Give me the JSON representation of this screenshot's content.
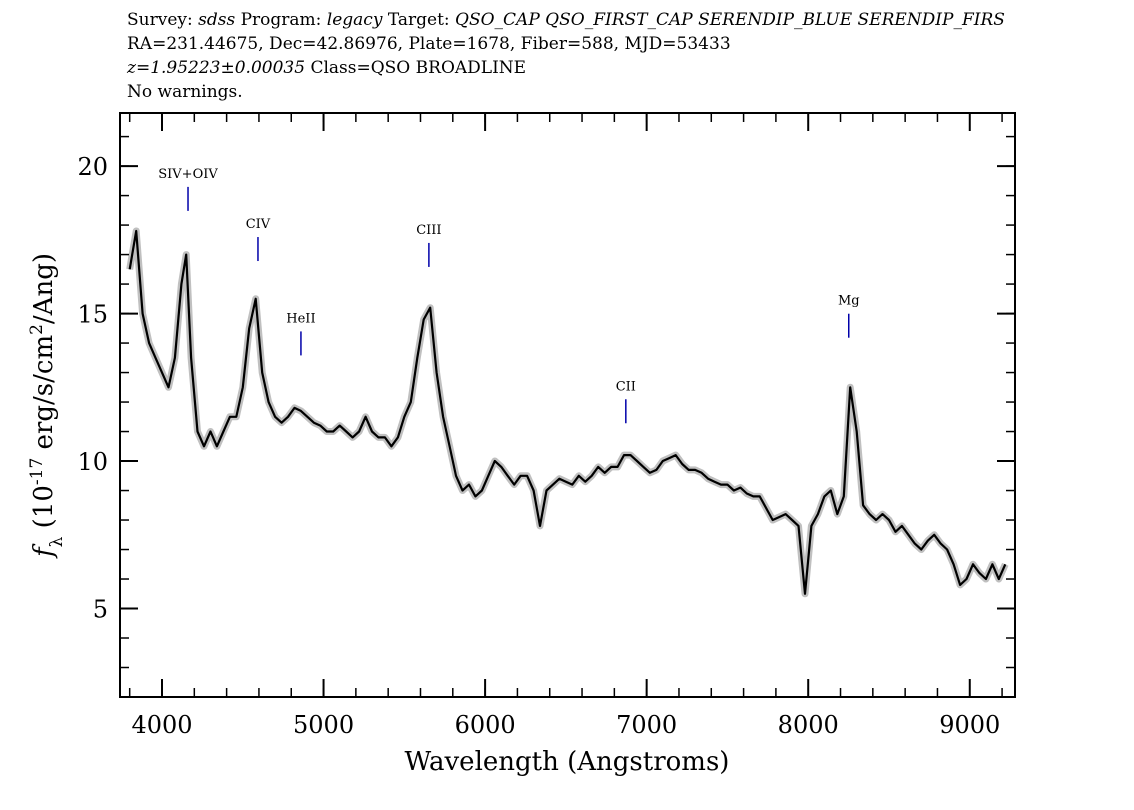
{
  "chart_data": {
    "type": "line",
    "header": [
      [
        {
          "text": "Survey: "
        },
        {
          "text": "sdss",
          "italic": true
        },
        {
          "text": " Program: "
        },
        {
          "text": "legacy",
          "italic": true
        },
        {
          "text": " Target: "
        },
        {
          "text": "QSO_CAP QSO_FIRST_CAP SERENDIP_BLUE SERENDIP_FIRS",
          "italic": true
        }
      ],
      [
        {
          "text": "RA=231.44675, Dec=42.86976, Plate=1678, Fiber=588, MJD=53433"
        }
      ],
      [
        {
          "text": "z=1.95223±0.00035",
          "italic": true
        },
        {
          "text": " Class=QSO BROADLINE"
        }
      ],
      [
        {
          "text": "No warnings."
        }
      ]
    ],
    "xlabel": "Wavelength (Angstroms)",
    "ylabel": [
      {
        "text": "f",
        "italic": true
      },
      {
        "text": "λ",
        "sub": true
      },
      {
        "text": " (10"
      },
      {
        "text": "-17",
        "sup": true
      },
      {
        "text": " erg/s/cm"
      },
      {
        "text": "2",
        "sup": true
      },
      {
        "text": "/Ang)"
      }
    ],
    "xlim": [
      3740,
      9280
    ],
    "ylim": [
      2,
      21.8
    ],
    "xticks": [
      4000,
      5000,
      6000,
      7000,
      8000,
      9000
    ],
    "yticks": [
      5,
      10,
      15,
      20
    ],
    "x": [
      3800,
      3840,
      3880,
      3920,
      3960,
      4000,
      4040,
      4080,
      4120,
      4150,
      4180,
      4220,
      4260,
      4300,
      4340,
      4380,
      4420,
      4460,
      4500,
      4540,
      4580,
      4620,
      4660,
      4700,
      4740,
      4780,
      4820,
      4860,
      4900,
      4940,
      4980,
      5020,
      5060,
      5100,
      5140,
      5180,
      5220,
      5260,
      5300,
      5340,
      5380,
      5420,
      5460,
      5500,
      5540,
      5580,
      5620,
      5660,
      5700,
      5740,
      5780,
      5820,
      5860,
      5900,
      5940,
      5980,
      6020,
      6060,
      6100,
      6140,
      6180,
      6220,
      6260,
      6300,
      6340,
      6380,
      6420,
      6460,
      6500,
      6540,
      6580,
      6620,
      6660,
      6700,
      6740,
      6780,
      6820,
      6860,
      6900,
      6940,
      6980,
      7020,
      7060,
      7100,
      7140,
      7180,
      7220,
      7260,
      7300,
      7340,
      7380,
      7420,
      7460,
      7500,
      7540,
      7580,
      7620,
      7660,
      7700,
      7740,
      7780,
      7820,
      7860,
      7900,
      7940,
      7980,
      8020,
      8060,
      8100,
      8140,
      8180,
      8220,
      8260,
      8300,
      8340,
      8380,
      8420,
      8460,
      8500,
      8540,
      8580,
      8620,
      8660,
      8700,
      8740,
      8780,
      8820,
      8860,
      8900,
      8940,
      8980,
      9020,
      9060,
      9100,
      9140,
      9180,
      9220
    ],
    "series": [
      {
        "color": "#000000",
        "error_color": "#c0c0c0",
        "values": [
          16.5,
          17.8,
          15,
          14,
          13.5,
          13,
          12.5,
          13.5,
          16,
          17,
          13.5,
          11,
          10.5,
          11,
          10.5,
          11,
          11.5,
          11.5,
          12.5,
          14.5,
          15.5,
          13,
          12,
          11.5,
          11.3,
          11.5,
          11.8,
          11.7,
          11.5,
          11.3,
          11.2,
          11,
          11,
          11.2,
          11,
          10.8,
          11,
          11.5,
          11,
          10.8,
          10.8,
          10.5,
          10.8,
          11.5,
          12,
          13.5,
          14.8,
          15.2,
          13,
          11.5,
          10.5,
          9.5,
          9,
          9.2,
          8.8,
          9,
          9.5,
          10,
          9.8,
          9.5,
          9.2,
          9.5,
          9.5,
          9,
          7.8,
          9,
          9.2,
          9.4,
          9.3,
          9.2,
          9.5,
          9.3,
          9.5,
          9.8,
          9.6,
          9.8,
          9.8,
          10.2,
          10.2,
          10,
          9.8,
          9.6,
          9.7,
          10,
          10.1,
          10.2,
          9.9,
          9.7,
          9.7,
          9.6,
          9.4,
          9.3,
          9.2,
          9.2,
          9,
          9.1,
          8.9,
          8.8,
          8.8,
          8.4,
          8,
          8.1,
          8.2,
          8,
          7.8,
          5.5,
          7.8,
          8.2,
          8.8,
          9,
          8.2,
          8.8,
          12.5,
          11,
          8.5,
          8.2,
          8,
          8.2,
          8,
          7.6,
          7.8,
          7.5,
          7.2,
          7,
          7.3,
          7.5,
          7.2,
          7,
          6.5,
          5.8,
          6,
          6.5,
          6.2,
          6,
          6.5,
          6,
          6.5
        ]
      }
    ],
    "annotations": [
      {
        "text": "SIV+OIV",
        "x": 4161,
        "y": 19.6,
        "color": "#0000aa"
      },
      {
        "text": "CIV",
        "x": 4594,
        "y": 17.9,
        "color": "#0000aa"
      },
      {
        "text": "HeII",
        "x": 4860,
        "y": 14.7,
        "color": "#0000aa"
      },
      {
        "text": "CIII",
        "x": 5652,
        "y": 17.7,
        "color": "#0000aa"
      },
      {
        "text": "CII",
        "x": 6871,
        "y": 12.4,
        "color": "#0000aa"
      },
      {
        "text": "Mg",
        "x": 8251,
        "y": 15.3,
        "color": "#0000aa"
      }
    ]
  }
}
